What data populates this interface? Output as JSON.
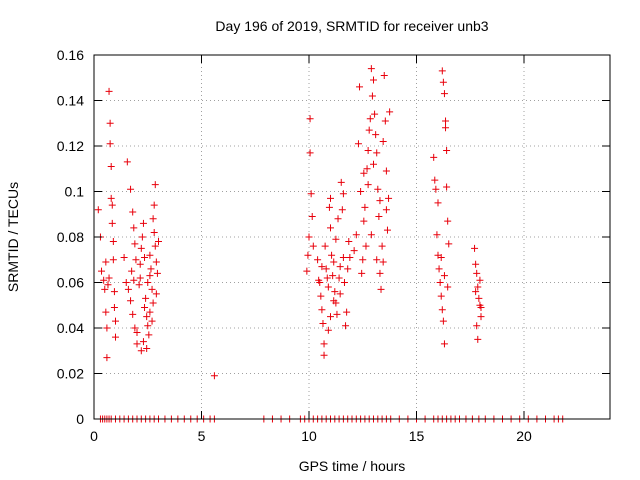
{
  "chart_data": {
    "type": "scatter",
    "title": "Day 196 of 2019, SRMTID for receiver unb3",
    "xlabel": "GPS time / hours",
    "ylabel": "SRMTID / TECUs",
    "xlim": [
      0,
      24
    ],
    "ylim": [
      0,
      0.16
    ],
    "x_ticks": [
      0,
      5,
      10,
      15,
      20
    ],
    "x_tick_labels": [
      "0",
      "5",
      "10",
      "15",
      "20"
    ],
    "y_ticks": [
      0,
      0.02,
      0.04,
      0.06,
      0.08,
      0.1,
      0.12,
      0.14,
      0.16
    ],
    "y_tick_labels": [
      "0",
      "0.02",
      "0.04",
      "0.06",
      "0.08",
      "0.1",
      "0.12",
      "0.14",
      "0.16"
    ],
    "grid": true,
    "marker": "+",
    "marker_color": "#e8000b",
    "series": [
      {
        "name": "SRMTID",
        "points": [
          [
            0.2,
            0.092
          ],
          [
            0.3,
            0.08
          ],
          [
            0.35,
            0.065
          ],
          [
            0.45,
            0.061
          ],
          [
            0.5,
            0.057
          ],
          [
            0.55,
            0.047
          ],
          [
            0.6,
            0.027
          ],
          [
            0.6,
            0.04
          ],
          [
            0.65,
            0.059
          ],
          [
            0.7,
            0.144
          ],
          [
            0.75,
            0.13
          ],
          [
            0.75,
            0.121
          ],
          [
            0.8,
            0.111
          ],
          [
            0.8,
            0.097
          ],
          [
            0.85,
            0.094
          ],
          [
            0.85,
            0.086
          ],
          [
            0.9,
            0.078
          ],
          [
            0.9,
            0.07
          ],
          [
            0.95,
            0.056
          ],
          [
            0.95,
            0.049
          ],
          [
            1.0,
            0.043
          ],
          [
            1.0,
            0.036
          ],
          [
            0.7,
            0.062
          ],
          [
            0.55,
            0.069
          ],
          [
            1.4,
            0.071
          ],
          [
            1.5,
            0.06
          ],
          [
            1.6,
            0.057
          ],
          [
            1.7,
            0.052
          ],
          [
            1.8,
            0.046
          ],
          [
            1.9,
            0.04
          ],
          [
            1.55,
            0.113
          ],
          [
            1.7,
            0.101
          ],
          [
            1.8,
            0.091
          ],
          [
            1.85,
            0.084
          ],
          [
            1.9,
            0.077
          ],
          [
            1.95,
            0.07
          ],
          [
            1.75,
            0.065
          ],
          [
            1.85,
            0.061
          ],
          [
            2.0,
            0.038
          ],
          [
            2.0,
            0.033
          ],
          [
            2.1,
            0.059
          ],
          [
            2.15,
            0.068
          ],
          [
            2.2,
            0.075
          ],
          [
            2.25,
            0.08
          ],
          [
            2.3,
            0.086
          ],
          [
            2.35,
            0.049
          ],
          [
            2.4,
            0.053
          ],
          [
            2.45,
            0.045
          ],
          [
            2.5,
            0.041
          ],
          [
            2.55,
            0.037
          ],
          [
            2.6,
            0.063
          ],
          [
            2.6,
            0.072
          ],
          [
            2.65,
            0.066
          ],
          [
            2.7,
            0.057
          ],
          [
            2.75,
            0.051
          ],
          [
            2.8,
            0.094
          ],
          [
            2.8,
            0.082
          ],
          [
            2.85,
            0.103
          ],
          [
            2.85,
            0.076
          ],
          [
            2.9,
            0.069
          ],
          [
            2.95,
            0.064
          ],
          [
            3.0,
            0.078
          ],
          [
            2.45,
            0.031
          ],
          [
            2.3,
            0.034
          ],
          [
            2.2,
            0.03
          ],
          [
            2.6,
            0.047
          ],
          [
            2.7,
            0.043
          ],
          [
            2.9,
            0.055
          ],
          [
            2.15,
            0.062
          ],
          [
            2.5,
            0.06
          ],
          [
            2.35,
            0.071
          ],
          [
            2.75,
            0.088
          ],
          [
            5.6,
            0.019
          ],
          [
            9.9,
            0.065
          ],
          [
            9.95,
            0.072
          ],
          [
            10.0,
            0.08
          ],
          [
            10.05,
            0.132
          ],
          [
            10.05,
            0.117
          ],
          [
            10.1,
            0.099
          ],
          [
            10.15,
            0.089
          ],
          [
            10.2,
            0.076
          ],
          [
            10.4,
            0.07
          ],
          [
            10.5,
            0.06
          ],
          [
            10.55,
            0.054
          ],
          [
            10.6,
            0.048
          ],
          [
            10.65,
            0.042
          ],
          [
            10.7,
            0.033
          ],
          [
            10.7,
            0.028
          ],
          [
            10.75,
            0.076
          ],
          [
            10.8,
            0.066
          ],
          [
            10.85,
            0.062
          ],
          [
            10.9,
            0.058
          ],
          [
            10.95,
            0.093
          ],
          [
            11.0,
            0.084
          ],
          [
            11.0,
            0.097
          ],
          [
            11.05,
            0.072
          ],
          [
            11.1,
            0.063
          ],
          [
            11.15,
            0.069
          ],
          [
            11.2,
            0.056
          ],
          [
            11.25,
            0.051
          ],
          [
            11.3,
            0.046
          ],
          [
            11.35,
            0.088
          ],
          [
            11.4,
            0.062
          ],
          [
            11.45,
            0.055
          ],
          [
            11.5,
            0.104
          ],
          [
            11.55,
            0.092
          ],
          [
            11.6,
            0.071
          ],
          [
            11.65,
            0.06
          ],
          [
            11.7,
            0.041
          ],
          [
            11.75,
            0.047
          ],
          [
            11.8,
            0.066
          ],
          [
            11.85,
            0.078
          ],
          [
            11.9,
            0.071
          ],
          [
            10.45,
            0.061
          ],
          [
            10.6,
            0.067
          ],
          [
            10.9,
            0.039
          ],
          [
            11.0,
            0.045
          ],
          [
            11.25,
            0.079
          ],
          [
            11.45,
            0.067
          ],
          [
            11.6,
            0.099
          ],
          [
            11.15,
            0.052
          ],
          [
            12.1,
            0.074
          ],
          [
            12.2,
            0.081
          ],
          [
            12.3,
            0.121
          ],
          [
            12.35,
            0.146
          ],
          [
            12.4,
            0.1
          ],
          [
            12.45,
            0.064
          ],
          [
            12.5,
            0.07
          ],
          [
            12.55,
            0.108
          ],
          [
            12.6,
            0.093
          ],
          [
            12.65,
            0.076
          ],
          [
            12.7,
            0.11
          ],
          [
            12.75,
            0.118
          ],
          [
            12.8,
            0.127
          ],
          [
            12.85,
            0.132
          ],
          [
            12.9,
            0.154
          ],
          [
            12.95,
            0.142
          ],
          [
            13.0,
            0.149
          ],
          [
            13.05,
            0.134
          ],
          [
            13.1,
            0.125
          ],
          [
            13.15,
            0.117
          ],
          [
            13.2,
            0.101
          ],
          [
            13.25,
            0.089
          ],
          [
            13.3,
            0.064
          ],
          [
            13.35,
            0.057
          ],
          [
            13.4,
            0.076
          ],
          [
            13.45,
            0.069
          ],
          [
            13.5,
            0.151
          ],
          [
            13.55,
            0.131
          ],
          [
            13.6,
            0.109
          ],
          [
            13.65,
            0.083
          ],
          [
            13.7,
            0.097
          ],
          [
            13.75,
            0.135
          ],
          [
            12.9,
            0.081
          ],
          [
            13.0,
            0.112
          ],
          [
            13.15,
            0.07
          ],
          [
            13.3,
            0.096
          ],
          [
            13.45,
            0.122
          ],
          [
            13.6,
            0.092
          ],
          [
            12.55,
            0.087
          ],
          [
            12.75,
            0.103
          ],
          [
            15.8,
            0.115
          ],
          [
            15.85,
            0.105
          ],
          [
            15.9,
            0.101
          ],
          [
            15.95,
            0.081
          ],
          [
            16.0,
            0.072
          ],
          [
            16.05,
            0.066
          ],
          [
            16.1,
            0.06
          ],
          [
            16.15,
            0.054
          ],
          [
            16.2,
            0.048
          ],
          [
            16.25,
            0.043
          ],
          [
            16.3,
            0.033
          ],
          [
            16.2,
            0.153
          ],
          [
            16.25,
            0.148
          ],
          [
            16.3,
            0.143
          ],
          [
            16.35,
            0.131
          ],
          [
            16.35,
            0.128
          ],
          [
            16.4,
            0.118
          ],
          [
            16.4,
            0.102
          ],
          [
            16.45,
            0.087
          ],
          [
            16.5,
            0.077
          ],
          [
            16.0,
            0.095
          ],
          [
            16.15,
            0.071
          ],
          [
            16.3,
            0.063
          ],
          [
            16.45,
            0.058
          ],
          [
            17.7,
            0.075
          ],
          [
            17.75,
            0.068
          ],
          [
            17.8,
            0.064
          ],
          [
            17.85,
            0.058
          ],
          [
            17.9,
            0.053
          ],
          [
            17.95,
            0.05
          ],
          [
            18.0,
            0.049
          ],
          [
            18.0,
            0.045
          ],
          [
            17.8,
            0.041
          ],
          [
            17.85,
            0.035
          ],
          [
            17.75,
            0.056
          ],
          [
            17.95,
            0.061
          ],
          [
            0.3,
            0
          ],
          [
            0.4,
            0
          ],
          [
            0.5,
            0
          ],
          [
            0.6,
            0
          ],
          [
            0.7,
            0
          ],
          [
            0.8,
            0
          ],
          [
            1.0,
            0
          ],
          [
            1.2,
            0
          ],
          [
            1.4,
            0
          ],
          [
            1.6,
            0
          ],
          [
            1.8,
            0
          ],
          [
            2.0,
            0
          ],
          [
            2.2,
            0
          ],
          [
            2.4,
            0
          ],
          [
            2.6,
            0
          ],
          [
            2.8,
            0
          ],
          [
            3.0,
            0
          ],
          [
            3.3,
            0
          ],
          [
            3.6,
            0
          ],
          [
            3.9,
            0
          ],
          [
            4.2,
            0
          ],
          [
            4.5,
            0
          ],
          [
            4.8,
            0
          ],
          [
            5.1,
            0
          ],
          [
            5.4,
            0
          ],
          [
            5.6,
            0
          ],
          [
            7.9,
            0
          ],
          [
            8.3,
            0
          ],
          [
            8.7,
            0
          ],
          [
            9.1,
            0
          ],
          [
            9.6,
            0
          ],
          [
            9.8,
            0
          ],
          [
            10.0,
            0
          ],
          [
            10.2,
            0
          ],
          [
            10.4,
            0
          ],
          [
            10.6,
            0
          ],
          [
            10.8,
            0
          ],
          [
            11.0,
            0
          ],
          [
            11.2,
            0
          ],
          [
            11.4,
            0
          ],
          [
            11.6,
            0
          ],
          [
            11.8,
            0
          ],
          [
            12.0,
            0
          ],
          [
            12.2,
            0
          ],
          [
            12.4,
            0
          ],
          [
            12.6,
            0
          ],
          [
            12.8,
            0
          ],
          [
            13.0,
            0
          ],
          [
            13.2,
            0
          ],
          [
            13.4,
            0
          ],
          [
            13.6,
            0
          ],
          [
            13.8,
            0
          ],
          [
            14.2,
            0
          ],
          [
            14.6,
            0
          ],
          [
            15.0,
            0
          ],
          [
            15.4,
            0
          ],
          [
            15.8,
            0
          ],
          [
            16.0,
            0
          ],
          [
            16.2,
            0
          ],
          [
            16.4,
            0
          ],
          [
            16.6,
            0
          ],
          [
            16.8,
            0
          ],
          [
            17.0,
            0
          ],
          [
            17.3,
            0
          ],
          [
            17.6,
            0
          ],
          [
            17.9,
            0
          ],
          [
            18.2,
            0
          ],
          [
            18.6,
            0
          ],
          [
            19.0,
            0
          ],
          [
            19.4,
            0
          ],
          [
            19.8,
            0
          ],
          [
            20.2,
            0
          ],
          [
            20.6,
            0
          ],
          [
            21.0,
            0
          ],
          [
            21.4,
            0
          ],
          [
            21.6,
            0
          ],
          [
            21.8,
            0
          ]
        ]
      }
    ]
  }
}
